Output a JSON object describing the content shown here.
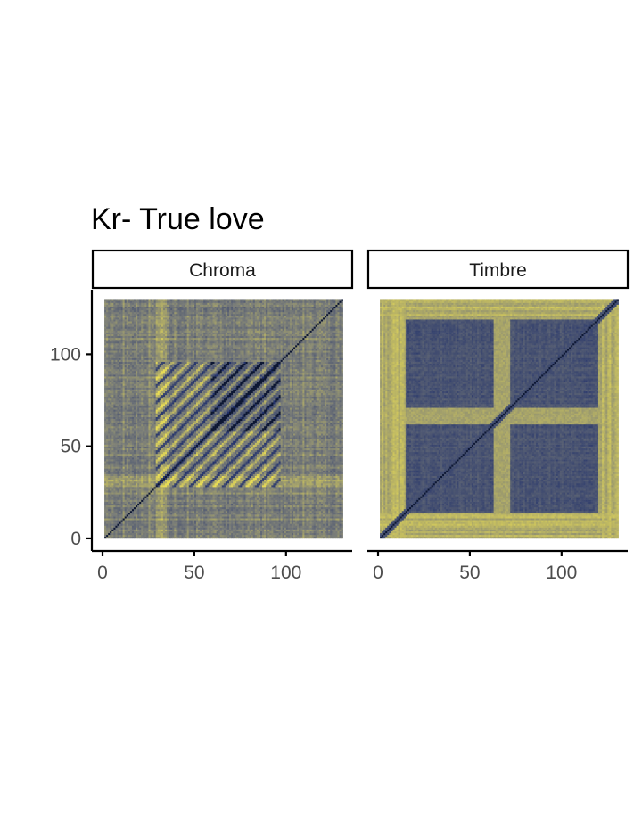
{
  "chart_data": {
    "type": "heatmap",
    "title": "Kr- True love",
    "xlabel": "",
    "ylabel": "",
    "xlim": [
      0,
      134
    ],
    "ylim": [
      0,
      134
    ],
    "x_ticks": [
      0,
      50,
      100
    ],
    "y_ticks": [
      0,
      50,
      100
    ],
    "x_tick_labels": [
      "0",
      "50",
      "100"
    ],
    "y_tick_labels": [
      "0",
      "50",
      "100"
    ],
    "grid": false,
    "legend": "none",
    "colors": {
      "low": "#1f2f6b",
      "mid": "#7a7d78",
      "high": "#e8dc55",
      "diagonal": "#0d1733"
    },
    "n": 130,
    "panels": [
      {
        "name": "Chroma",
        "section_boundaries": [
          0,
          28,
          58,
          96,
          130
        ],
        "structure": "repeated diagonal stripes in sections 28-58 and 58-96; bright yellow bands near 28-32"
      },
      {
        "name": "Timbre",
        "section_boundaries": [
          0,
          14,
          62,
          70,
          118,
          130
        ],
        "structure": "dark blue blocks 14-62 and 70-118; yellow cross bands at 62-70 and edges"
      }
    ]
  }
}
